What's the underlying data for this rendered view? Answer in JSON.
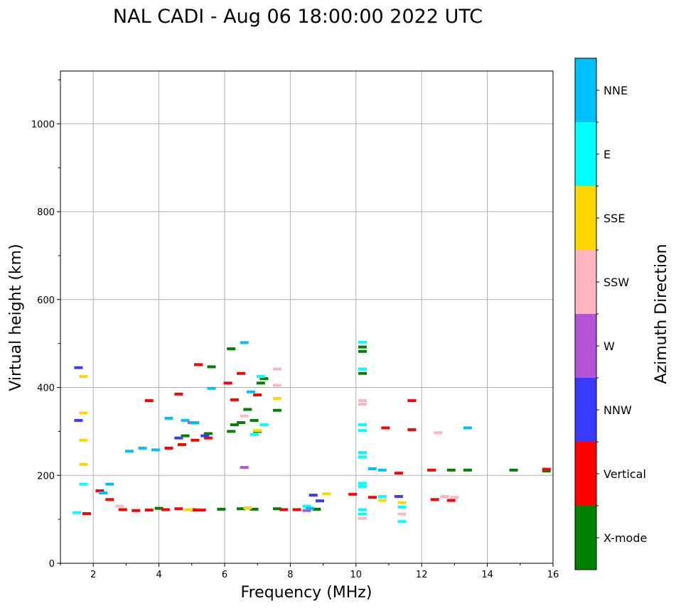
{
  "chart_data": {
    "type": "scatter",
    "title": "NAL CADI - Aug 06 18:00:00 2022 UTC",
    "xlabel": "Frequency (MHz)",
    "ylabel": "Virtual height (km)",
    "xlim": [
      1,
      16
    ],
    "ylim": [
      0,
      1120
    ],
    "xticks": [
      "2",
      "4",
      "6",
      "8",
      "10",
      "12",
      "14",
      "16"
    ],
    "yticks": [
      "0",
      "200",
      "400",
      "600",
      "800",
      "1000"
    ],
    "grid": true,
    "colorbar": {
      "label": "Azimuth Direction",
      "categories": [
        "X-mode",
        "Vertical",
        "NNW",
        "W",
        "SSW",
        "SSE",
        "E",
        "NNE"
      ],
      "colors": [
        "#008000",
        "#ff0000",
        "#3a3aff",
        "#b455d6",
        "#ffb6c1",
        "#ffd700",
        "#00ffff",
        "#00bfff"
      ]
    },
    "series": [
      {
        "name": "X-mode",
        "points": [
          [
            4.0,
            125
          ],
          [
            5.0,
            122
          ],
          [
            5.9,
            123
          ],
          [
            6.5,
            124
          ],
          [
            6.9,
            123
          ],
          [
            7.6,
            124
          ],
          [
            8.8,
            123
          ],
          [
            6.2,
            300
          ],
          [
            6.3,
            315
          ],
          [
            6.5,
            320
          ],
          [
            6.7,
            350
          ],
          [
            6.9,
            325
          ],
          [
            7.0,
            300
          ],
          [
            7.1,
            410
          ],
          [
            7.2,
            420
          ],
          [
            7.6,
            348
          ],
          [
            6.2,
            488
          ],
          [
            10.2,
            482
          ],
          [
            10.2,
            492
          ],
          [
            10.2,
            432
          ],
          [
            12.7,
            152
          ],
          [
            12.9,
            212
          ],
          [
            13.4,
            212
          ],
          [
            14.8,
            212
          ],
          [
            15.8,
            210
          ],
          [
            4.8,
            290
          ],
          [
            5.5,
            295
          ],
          [
            5.6,
            447
          ]
        ]
      },
      {
        "name": "Vertical",
        "points": [
          [
            2.9,
            122
          ],
          [
            3.3,
            120
          ],
          [
            3.7,
            121
          ],
          [
            4.2,
            122
          ],
          [
            4.6,
            124
          ],
          [
            5.1,
            121
          ],
          [
            5.3,
            121
          ],
          [
            7.8,
            122
          ],
          [
            8.2,
            122
          ],
          [
            9.9,
            157
          ],
          [
            10.5,
            150
          ],
          [
            10.9,
            308
          ],
          [
            11.3,
            205
          ],
          [
            11.7,
            370
          ],
          [
            11.7,
            304
          ],
          [
            12.3,
            212
          ],
          [
            12.4,
            145
          ],
          [
            12.9,
            143
          ],
          [
            15.8,
            214
          ],
          [
            4.3,
            262
          ],
          [
            4.7,
            270
          ],
          [
            5.1,
            280
          ],
          [
            5.5,
            285
          ],
          [
            3.7,
            370
          ],
          [
            4.6,
            385
          ],
          [
            5.2,
            452
          ],
          [
            6.1,
            410
          ],
          [
            6.3,
            372
          ],
          [
            6.5,
            432
          ],
          [
            7.0,
            383
          ],
          [
            2.2,
            165
          ],
          [
            2.5,
            145
          ],
          [
            1.8,
            113
          ]
        ]
      },
      {
        "name": "NNW",
        "points": [
          [
            1.55,
            445
          ],
          [
            1.55,
            325
          ],
          [
            4.6,
            285
          ],
          [
            5.4,
            290
          ],
          [
            8.7,
            155
          ],
          [
            8.9,
            142
          ],
          [
            11.3,
            152
          ]
        ]
      },
      {
        "name": "W",
        "points": [
          [
            5.0,
            320
          ],
          [
            6.6,
            218
          ],
          [
            8.5,
            120
          ]
        ]
      },
      {
        "name": "SSW",
        "points": [
          [
            2.8,
            130
          ],
          [
            5.1,
            318
          ],
          [
            6.6,
            335
          ],
          [
            7.6,
            442
          ],
          [
            7.6,
            405
          ],
          [
            10.2,
            370
          ],
          [
            10.2,
            362
          ],
          [
            10.2,
            102
          ],
          [
            11.4,
            112
          ],
          [
            12.5,
            297
          ],
          [
            12.7,
            152
          ],
          [
            13.0,
            150
          ]
        ]
      },
      {
        "name": "SSE",
        "points": [
          [
            1.7,
            425
          ],
          [
            1.7,
            342
          ],
          [
            1.7,
            280
          ],
          [
            1.7,
            225
          ],
          [
            4.9,
            122
          ],
          [
            6.7,
            126
          ],
          [
            7.0,
            302
          ],
          [
            7.6,
            375
          ],
          [
            9.1,
            158
          ],
          [
            10.8,
            143
          ],
          [
            11.4,
            138
          ]
        ]
      },
      {
        "name": "E",
        "points": [
          [
            1.5,
            115
          ],
          [
            1.7,
            180
          ],
          [
            6.9,
            293
          ],
          [
            7.2,
            315
          ],
          [
            7.1,
            425
          ],
          [
            8.5,
            130
          ],
          [
            10.2,
            503
          ],
          [
            10.2,
            442
          ],
          [
            10.2,
            315
          ],
          [
            10.2,
            302
          ],
          [
            10.2,
            252
          ],
          [
            10.2,
            242
          ],
          [
            10.2,
            182
          ],
          [
            10.2,
            175
          ],
          [
            10.2,
            122
          ],
          [
            10.2,
            112
          ],
          [
            10.8,
            152
          ],
          [
            11.4,
            95
          ],
          [
            11.4,
            128
          ]
        ]
      },
      {
        "name": "NNE",
        "points": [
          [
            3.1,
            255
          ],
          [
            3.5,
            262
          ],
          [
            3.9,
            258
          ],
          [
            4.3,
            330
          ],
          [
            4.8,
            325
          ],
          [
            5.1,
            320
          ],
          [
            5.6,
            398
          ],
          [
            6.6,
            502
          ],
          [
            6.8,
            390
          ],
          [
            8.6,
            125
          ],
          [
            10.5,
            215
          ],
          [
            10.8,
            212
          ],
          [
            13.4,
            308
          ],
          [
            2.5,
            180
          ],
          [
            2.3,
            160
          ]
        ]
      }
    ]
  }
}
